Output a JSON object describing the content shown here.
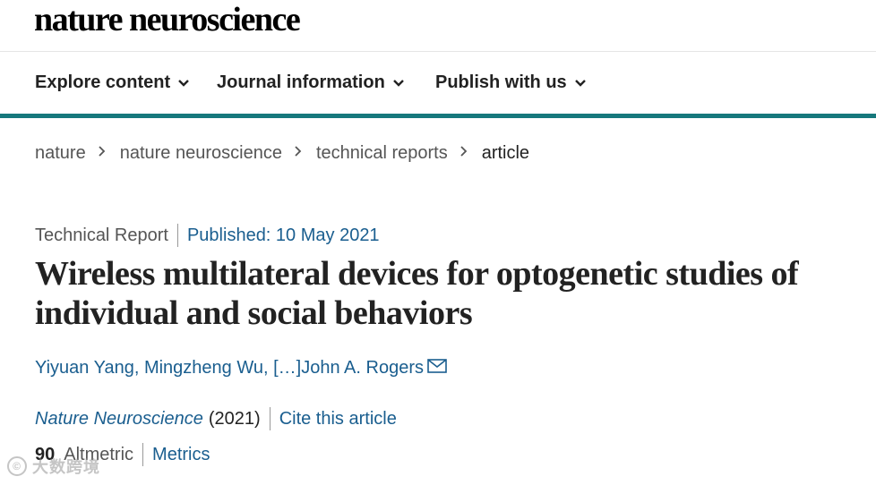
{
  "header": {
    "logo_text": "nature neuroscience"
  },
  "nav": {
    "items": [
      {
        "label": "Explore content"
      },
      {
        "label": "Journal information"
      },
      {
        "label": "Publish with us"
      }
    ]
  },
  "breadcrumb": {
    "items": [
      {
        "label": "nature"
      },
      {
        "label": "nature neuroscience"
      },
      {
        "label": "technical reports"
      },
      {
        "label": "article"
      }
    ]
  },
  "article": {
    "type": "Technical Report",
    "published": "Published: 10 May 2021",
    "title": "Wireless multilateral devices for optogenetic studies of individual and social behaviors",
    "authors": {
      "first": "Yiyuan Yang,",
      "second": "Mingzheng Wu,",
      "ellipsis": "[…]",
      "last": "John A. Rogers"
    },
    "journal": "Nature Neuroscience",
    "year": "(2021)",
    "cite_label": "Cite this article",
    "altmetric_score": "90",
    "altmetric_label": "Altmetric",
    "metrics_label": "Metrics"
  },
  "watermark": {
    "text": "大数跨境",
    "logo": "©"
  },
  "colors": {
    "accent": "#16787c",
    "link": "#1a5e8f"
  }
}
